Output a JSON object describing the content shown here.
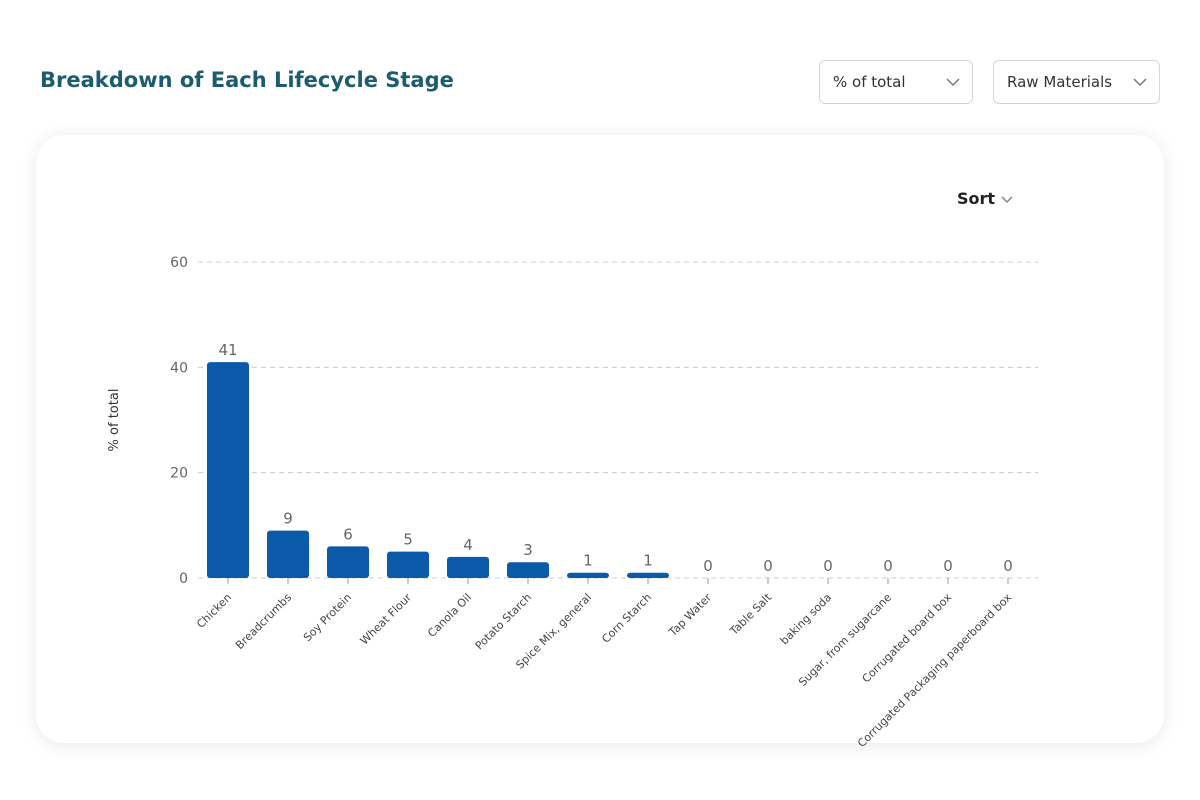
{
  "header": {
    "title": "Breakdown of Each Lifecycle Stage",
    "dropdowns": [
      "% of total",
      "Raw Materials"
    ]
  },
  "sort_label": "Sort",
  "chart_data": {
    "type": "bar",
    "y_label": "% of total",
    "categories": [
      "Chicken",
      "Breadcrumbs",
      "Soy Protein",
      "Wheat Flour",
      "Canola Oil",
      "Potato Starch",
      "Spice Mix, general",
      "Corn Starch",
      "Tap Water",
      "Table Salt",
      "baking soda",
      "Sugar, from sugarcane",
      "Corrugated board box",
      "Corrugated Packaging paperboard box"
    ],
    "values": [
      41,
      9,
      6,
      5,
      4,
      3,
      1,
      1,
      0,
      0,
      0,
      0,
      0,
      0
    ],
    "color": "#0b5aa9",
    "ylim": [
      0,
      60
    ],
    "yticks": [
      0,
      20,
      40,
      60
    ],
    "grid": true
  }
}
